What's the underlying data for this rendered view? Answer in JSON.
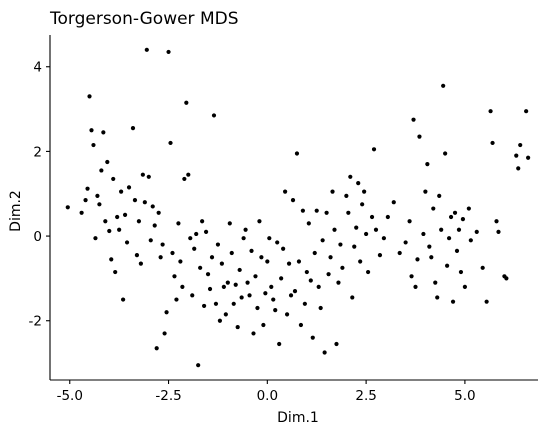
{
  "chart_data": {
    "type": "scatter",
    "title": "Torgerson-Gower MDS",
    "xlabel": "Dim.1",
    "ylabel": "Dim.2",
    "xlim": [
      -5.5,
      6.85
    ],
    "ylim": [
      -3.4,
      4.75
    ],
    "xticks": [
      -5.0,
      -2.5,
      0.0,
      2.5,
      5.0
    ],
    "xtick_labels": [
      "-5.0",
      "-2.5",
      "0.0",
      "2.5",
      "5.0"
    ],
    "yticks": [
      -2,
      0,
      2,
      4
    ],
    "ytick_labels": [
      "-2",
      "0",
      "2",
      "4"
    ],
    "grid": false,
    "point_color": "#000000",
    "points": [
      [
        -5.05,
        0.68
      ],
      [
        -4.7,
        0.55
      ],
      [
        -4.6,
        0.85
      ],
      [
        -4.55,
        1.12
      ],
      [
        -4.5,
        3.3
      ],
      [
        -4.45,
        2.5
      ],
      [
        -4.4,
        2.15
      ],
      [
        -4.35,
        -0.05
      ],
      [
        -4.3,
        0.95
      ],
      [
        -4.25,
        0.75
      ],
      [
        -4.2,
        1.55
      ],
      [
        -4.15,
        2.45
      ],
      [
        -4.1,
        0.35
      ],
      [
        -4.05,
        1.75
      ],
      [
        -4.0,
        0.12
      ],
      [
        -3.95,
        -0.55
      ],
      [
        -3.9,
        1.35
      ],
      [
        -3.85,
        -0.85
      ],
      [
        -3.8,
        0.45
      ],
      [
        -3.75,
        0.15
      ],
      [
        -3.7,
        1.05
      ],
      [
        -3.65,
        -1.5
      ],
      [
        -3.6,
        0.5
      ],
      [
        -3.55,
        -0.15
      ],
      [
        -3.5,
        1.15
      ],
      [
        -3.4,
        2.55
      ],
      [
        -3.35,
        0.85
      ],
      [
        -3.3,
        -0.45
      ],
      [
        -3.25,
        0.35
      ],
      [
        -3.2,
        -0.65
      ],
      [
        -3.15,
        1.45
      ],
      [
        -3.1,
        0.8
      ],
      [
        -3.05,
        4.4
      ],
      [
        -3.0,
        1.4
      ],
      [
        -2.95,
        -0.1
      ],
      [
        -2.9,
        0.7
      ],
      [
        -2.85,
        0.25
      ],
      [
        -2.8,
        -2.65
      ],
      [
        -2.75,
        0.55
      ],
      [
        -2.7,
        -0.5
      ],
      [
        -2.65,
        -0.2
      ],
      [
        -2.6,
        -2.3
      ],
      [
        -2.55,
        -1.8
      ],
      [
        -2.5,
        4.35
      ],
      [
        -2.45,
        2.2
      ],
      [
        -2.4,
        -0.4
      ],
      [
        -2.35,
        -0.95
      ],
      [
        -2.3,
        -1.5
      ],
      [
        -2.25,
        0.3
      ],
      [
        -2.2,
        -0.6
      ],
      [
        -2.15,
        -1.2
      ],
      [
        -2.1,
        1.35
      ],
      [
        -2.05,
        3.15
      ],
      [
        -2.0,
        1.45
      ],
      [
        -1.95,
        -0.05
      ],
      [
        -1.9,
        -1.4
      ],
      [
        -1.85,
        -0.3
      ],
      [
        -1.8,
        0.05
      ],
      [
        -1.75,
        -3.05
      ],
      [
        -1.7,
        -0.75
      ],
      [
        -1.65,
        0.35
      ],
      [
        -1.6,
        -1.65
      ],
      [
        -1.55,
        0.1
      ],
      [
        -1.5,
        -0.9
      ],
      [
        -1.45,
        -1.25
      ],
      [
        -1.4,
        -0.5
      ],
      [
        -1.35,
        2.85
      ],
      [
        -1.3,
        -1.6
      ],
      [
        -1.25,
        -0.2
      ],
      [
        -1.2,
        -2.0
      ],
      [
        -1.15,
        -0.65
      ],
      [
        -1.1,
        -1.2
      ],
      [
        -1.05,
        -1.85
      ],
      [
        -1.0,
        -1.1
      ],
      [
        -0.95,
        0.3
      ],
      [
        -0.9,
        -0.4
      ],
      [
        -0.85,
        -1.6
      ],
      [
        -0.8,
        -1.15
      ],
      [
        -0.75,
        -2.15
      ],
      [
        -0.7,
        -0.8
      ],
      [
        -0.65,
        -1.45
      ],
      [
        -0.6,
        -0.05
      ],
      [
        -0.55,
        0.15
      ],
      [
        -0.5,
        -1.1
      ],
      [
        -0.45,
        -1.4
      ],
      [
        -0.4,
        -0.35
      ],
      [
        -0.35,
        -2.3
      ],
      [
        -0.3,
        -0.95
      ],
      [
        -0.25,
        -1.7
      ],
      [
        -0.2,
        0.35
      ],
      [
        -0.15,
        -0.5
      ],
      [
        -0.1,
        -2.1
      ],
      [
        -0.05,
        -1.35
      ],
      [
        0.0,
        -0.6
      ],
      [
        0.05,
        -0.05
      ],
      [
        0.1,
        -1.2
      ],
      [
        0.15,
        -1.5
      ],
      [
        0.2,
        -1.75
      ],
      [
        0.25,
        -0.15
      ],
      [
        0.3,
        -2.55
      ],
      [
        0.35,
        -1.0
      ],
      [
        0.4,
        -0.3
      ],
      [
        0.45,
        1.05
      ],
      [
        0.5,
        -1.85
      ],
      [
        0.55,
        -0.65
      ],
      [
        0.6,
        -1.4
      ],
      [
        0.65,
        0.85
      ],
      [
        0.7,
        -1.3
      ],
      [
        0.75,
        1.95
      ],
      [
        0.8,
        -0.6
      ],
      [
        0.85,
        -2.1
      ],
      [
        0.9,
        0.6
      ],
      [
        0.95,
        -1.6
      ],
      [
        1.0,
        -0.85
      ],
      [
        1.05,
        0.3
      ],
      [
        1.1,
        -1.05
      ],
      [
        1.15,
        -2.4
      ],
      [
        1.2,
        -0.4
      ],
      [
        1.25,
        0.6
      ],
      [
        1.3,
        -1.2
      ],
      [
        1.35,
        -1.7
      ],
      [
        1.4,
        -0.1
      ],
      [
        1.45,
        -2.75
      ],
      [
        1.5,
        0.55
      ],
      [
        1.55,
        -0.9
      ],
      [
        1.6,
        -0.5
      ],
      [
        1.65,
        1.05
      ],
      [
        1.7,
        0.15
      ],
      [
        1.75,
        -2.55
      ],
      [
        1.8,
        -1.1
      ],
      [
        1.85,
        -0.2
      ],
      [
        1.9,
        -0.75
      ],
      [
        2.0,
        0.95
      ],
      [
        2.05,
        0.55
      ],
      [
        2.1,
        1.4
      ],
      [
        2.15,
        -1.45
      ],
      [
        2.2,
        -0.25
      ],
      [
        2.25,
        0.2
      ],
      [
        2.3,
        1.25
      ],
      [
        2.35,
        -0.6
      ],
      [
        2.4,
        0.75
      ],
      [
        2.45,
        1.05
      ],
      [
        2.5,
        0.05
      ],
      [
        2.55,
        -0.85
      ],
      [
        2.65,
        0.45
      ],
      [
        2.7,
        2.05
      ],
      [
        2.75,
        0.15
      ],
      [
        2.85,
        -0.45
      ],
      [
        2.95,
        -0.05
      ],
      [
        3.05,
        0.45
      ],
      [
        3.2,
        0.8
      ],
      [
        3.35,
        -0.4
      ],
      [
        3.5,
        -0.15
      ],
      [
        3.6,
        0.35
      ],
      [
        3.65,
        -0.95
      ],
      [
        3.7,
        2.75
      ],
      [
        3.75,
        -1.2
      ],
      [
        3.8,
        -0.55
      ],
      [
        3.85,
        2.35
      ],
      [
        3.95,
        0.05
      ],
      [
        4.0,
        1.05
      ],
      [
        4.05,
        1.7
      ],
      [
        4.1,
        -0.25
      ],
      [
        4.15,
        -0.5
      ],
      [
        4.2,
        0.65
      ],
      [
        4.25,
        -1.1
      ],
      [
        4.3,
        -1.45
      ],
      [
        4.35,
        0.95
      ],
      [
        4.4,
        0.15
      ],
      [
        4.45,
        3.55
      ],
      [
        4.5,
        1.95
      ],
      [
        4.55,
        -0.7
      ],
      [
        4.6,
        -0.05
      ],
      [
        4.65,
        0.45
      ],
      [
        4.7,
        -1.55
      ],
      [
        4.75,
        0.55
      ],
      [
        4.8,
        -0.35
      ],
      [
        4.85,
        0.15
      ],
      [
        4.9,
        -0.85
      ],
      [
        4.95,
        0.4
      ],
      [
        5.0,
        -1.2
      ],
      [
        5.1,
        0.65
      ],
      [
        5.15,
        -0.1
      ],
      [
        5.3,
        0.1
      ],
      [
        5.45,
        -0.75
      ],
      [
        5.55,
        -1.55
      ],
      [
        5.65,
        2.95
      ],
      [
        5.7,
        2.2
      ],
      [
        5.8,
        0.35
      ],
      [
        5.85,
        0.1
      ],
      [
        6.0,
        -0.95
      ],
      [
        6.05,
        -1.0
      ],
      [
        6.3,
        1.9
      ],
      [
        6.35,
        1.6
      ],
      [
        6.4,
        2.15
      ],
      [
        6.55,
        2.95
      ],
      [
        6.6,
        1.85
      ]
    ]
  }
}
